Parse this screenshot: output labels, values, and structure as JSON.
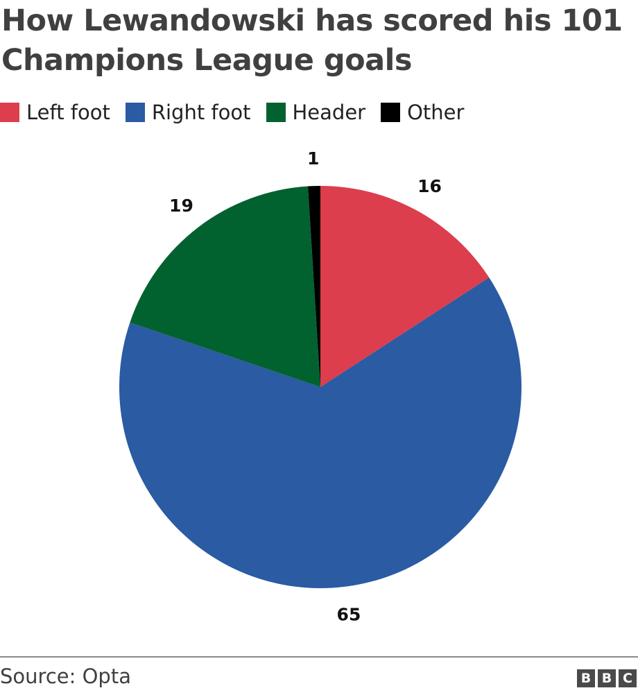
{
  "title": "How Lewandowski has scored his 101 Champions League goals",
  "source": "Source: Opta",
  "logo": {
    "letters": [
      "B",
      "B",
      "C"
    ]
  },
  "colors": {
    "left_foot": "#dc3e4d",
    "right_foot": "#2a5ba3",
    "header": "#02622f",
    "other": "#000000"
  },
  "chart_data": {
    "type": "pie",
    "title": "How Lewandowski has scored his 101 Champions League goals",
    "legend_position": "top",
    "slices": [
      {
        "name": "Left foot",
        "value": 16,
        "color": "#dc3e4d"
      },
      {
        "name": "Right foot",
        "value": 65,
        "color": "#2a5ba3"
      },
      {
        "name": "Header",
        "value": 19,
        "color": "#02622f"
      },
      {
        "name": "Other",
        "value": 1,
        "color": "#000000"
      }
    ],
    "total": 101,
    "start": "12 o'clock",
    "direction": "clockwise"
  }
}
